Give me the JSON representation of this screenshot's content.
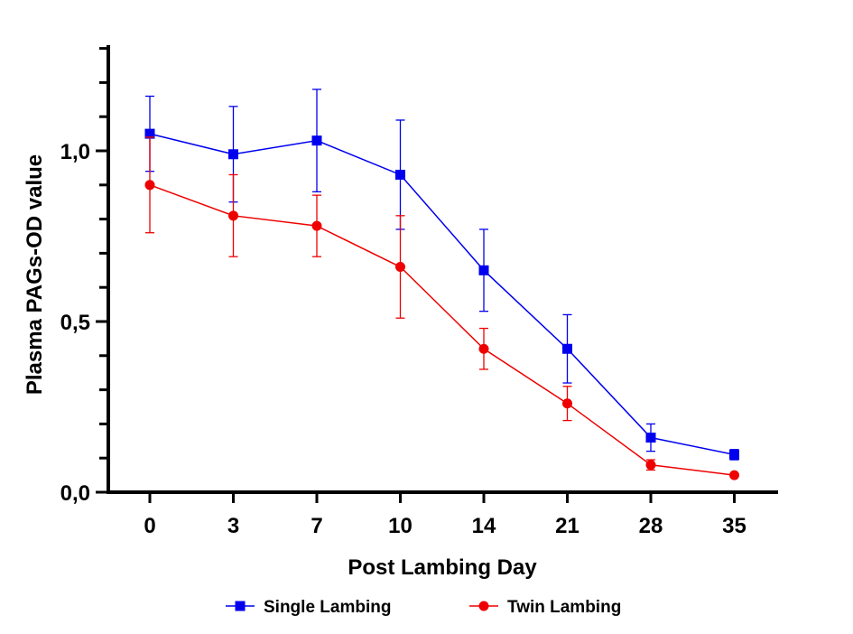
{
  "chart_data": {
    "type": "line",
    "title": "",
    "xlabel": "Post Lambing Day",
    "ylabel": "Plasma PAGs-OD value",
    "categories": [
      "0",
      "3",
      "7",
      "10",
      "14",
      "21",
      "28",
      "35"
    ],
    "ylim": [
      0,
      1.3
    ],
    "y_ticks": [
      0.0,
      0.5,
      1.0
    ],
    "y_tick_labels": [
      "0,0",
      "0,5",
      "1,0"
    ],
    "y_minor_step": 0.1,
    "grid": false,
    "legend_position": "bottom",
    "series": [
      {
        "name": "Single Lambing",
        "color": "#0000ee",
        "marker": "square",
        "values": [
          1.05,
          0.99,
          1.03,
          0.93,
          0.65,
          0.42,
          0.16,
          0.11
        ],
        "errors": [
          0.11,
          0.14,
          0.15,
          0.16,
          0.12,
          0.1,
          0.04,
          0.015
        ]
      },
      {
        "name": "Twin Lambing",
        "color": "#ee0000",
        "marker": "circle",
        "values": [
          0.9,
          0.81,
          0.78,
          0.66,
          0.42,
          0.26,
          0.08,
          0.05
        ],
        "errors": [
          0.14,
          0.12,
          0.09,
          0.15,
          0.06,
          0.05,
          0.015,
          0.0
        ]
      }
    ]
  }
}
